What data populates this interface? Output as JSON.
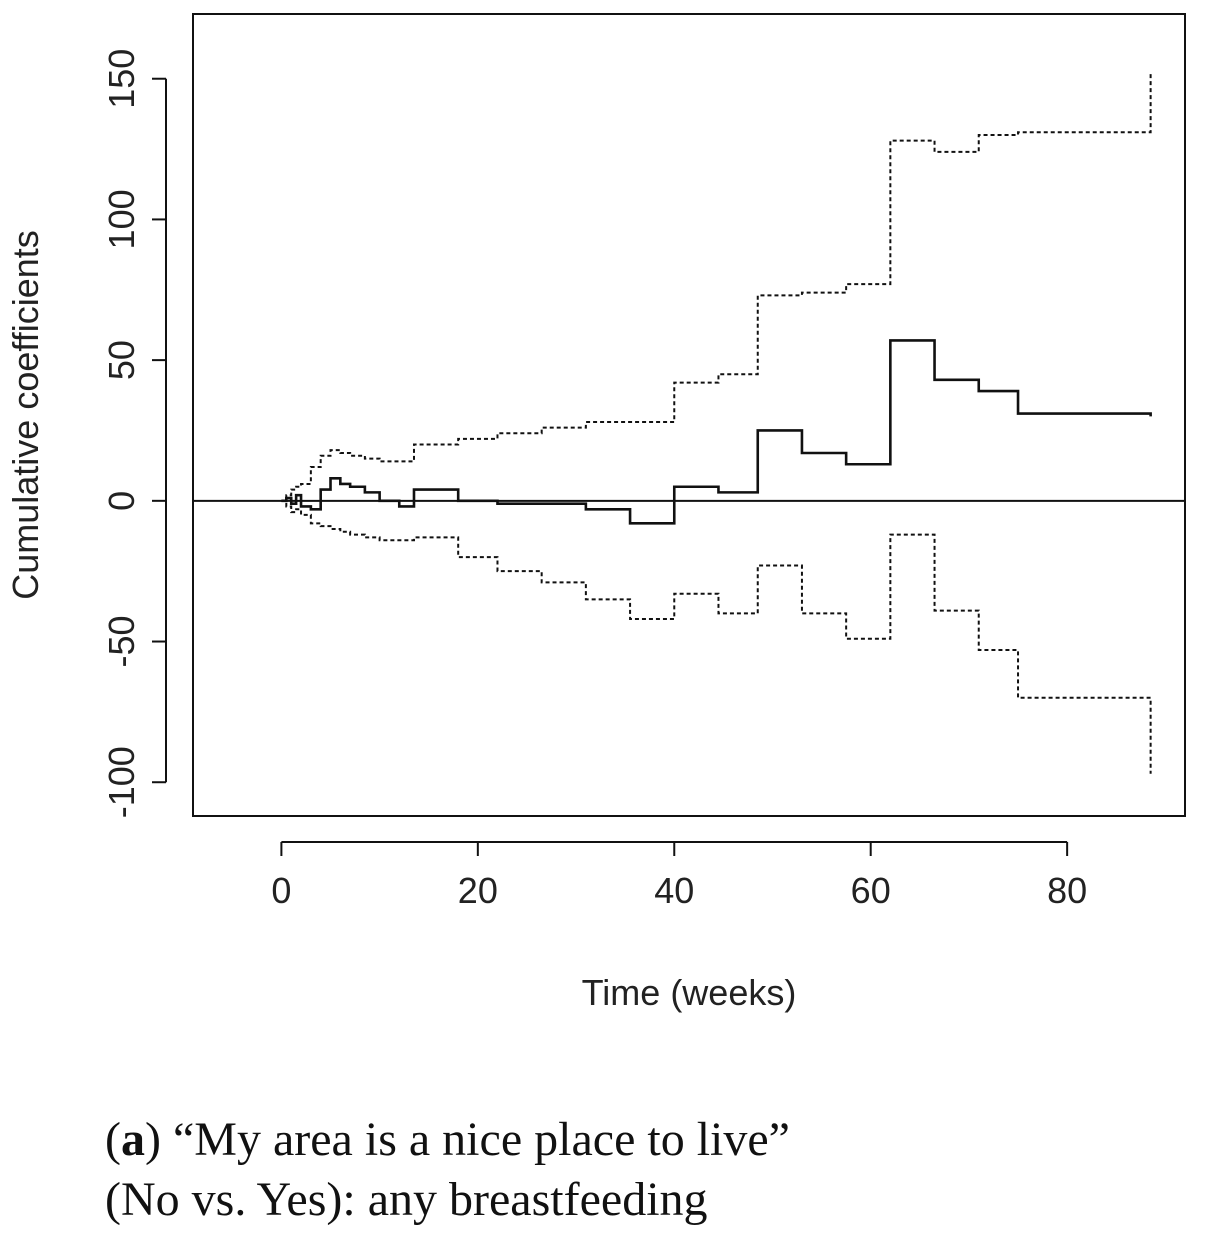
{
  "chart_data": {
    "type": "line",
    "xlabel": "Time (weeks)",
    "ylabel": "Cumulative coefficients",
    "xlim": [
      -9,
      92
    ],
    "ylim": [
      -112,
      173
    ],
    "xticks": [
      0,
      20,
      40,
      60,
      80
    ],
    "yticks": [
      -100,
      -50,
      0,
      50,
      100,
      150
    ],
    "xtick_labels": [
      "0",
      "20",
      "40",
      "60",
      "80"
    ],
    "ytick_labels": [
      "-100",
      "-50",
      "0",
      "50",
      "100",
      "150"
    ],
    "reference_line_y": 0,
    "grid": false,
    "legend": "none",
    "series": [
      {
        "style": "solid",
        "x": [
          0,
          0.5,
          1.0,
          1.5,
          2.0,
          3.0,
          4.0,
          5.0,
          6.0,
          7.0,
          8.5,
          10.0,
          12.0,
          13.5,
          18.0,
          22.0,
          27.0,
          31.0,
          35.5,
          40.0,
          44.5,
          48.5,
          53.0,
          57.5,
          62.0,
          66.5,
          71.0,
          75.0,
          88.5
        ],
        "y": [
          0,
          1,
          -1,
          2,
          -2,
          -3,
          4,
          8,
          6,
          5,
          3,
          0,
          -2,
          4,
          0,
          -1,
          -1,
          -3,
          -8,
          5,
          3,
          25,
          17,
          13,
          57,
          43,
          39,
          31,
          30
        ]
      },
      {
        "style": "dotted",
        "x": [
          0,
          0.5,
          1.0,
          1.5,
          2.0,
          3.0,
          4.0,
          5.0,
          6.0,
          7.0,
          8.5,
          10.0,
          13.5,
          18.0,
          22.0,
          26.5,
          31.0,
          35.5,
          40.0,
          44.5,
          48.5,
          53.0,
          57.5,
          62.0,
          66.5,
          71.0,
          75.0,
          88.5
        ],
        "y": [
          0,
          2,
          4,
          5,
          6,
          12,
          16,
          18,
          17,
          16,
          15,
          14,
          20,
          22,
          24,
          26,
          28,
          28,
          42,
          45,
          73,
          74,
          77,
          128,
          124,
          130,
          131,
          152
        ]
      },
      {
        "style": "dotted",
        "x": [
          0,
          0.5,
          1.0,
          1.5,
          2.0,
          3.0,
          4.0,
          5.0,
          6.0,
          7.0,
          8.5,
          10.0,
          13.5,
          18.0,
          22.0,
          26.5,
          31.0,
          35.5,
          40.0,
          44.5,
          48.5,
          53.0,
          57.5,
          62.0,
          66.5,
          71.0,
          75.0,
          88.5
        ],
        "y": [
          0,
          -2,
          -4,
          -3,
          -5,
          -8,
          -9,
          -10,
          -11,
          -12,
          -13,
          -14,
          -13,
          -20,
          -25,
          -29,
          -35,
          -42,
          -33,
          -40,
          -23,
          -40,
          -49,
          -12,
          -39,
          -53,
          -70,
          -97
        ]
      }
    ]
  },
  "caption": {
    "letter": "a",
    "line1_rest": ") “My area is a nice place to live”",
    "line2": "(No vs. Yes): any breastfeeding",
    "open_paren": "("
  }
}
